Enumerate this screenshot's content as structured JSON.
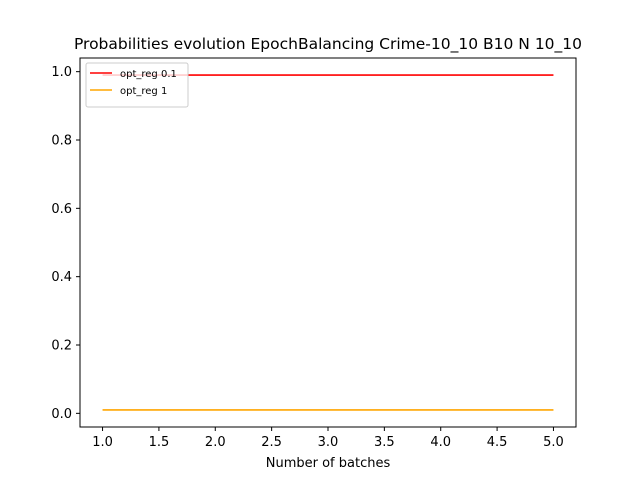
{
  "chart_data": {
    "type": "line",
    "title": "Probabilities evolution EpochBalancing Crime-10_10 B10 N 10_10",
    "xlabel": "Number of batches",
    "ylabel": "",
    "x": [
      1,
      2,
      3,
      4,
      5
    ],
    "xlim": [
      0.8,
      5.2
    ],
    "ylim": [
      -0.04,
      1.04
    ],
    "xticks": [
      "1.0",
      "1.5",
      "2.0",
      "2.5",
      "3.0",
      "3.5",
      "4.0",
      "4.5",
      "5.0"
    ],
    "yticks": [
      "0.0",
      "0.2",
      "0.4",
      "0.6",
      "0.8",
      "1.0"
    ],
    "grid": false,
    "legend_position": "top-left",
    "series": [
      {
        "name": "opt_reg 0.1",
        "color": "#ff0000",
        "values": [
          0.99,
          0.99,
          0.99,
          0.99,
          0.99
        ]
      },
      {
        "name": "opt_reg 1",
        "color": "#ffa500",
        "values": [
          0.01,
          0.01,
          0.01,
          0.01,
          0.01
        ]
      }
    ]
  }
}
